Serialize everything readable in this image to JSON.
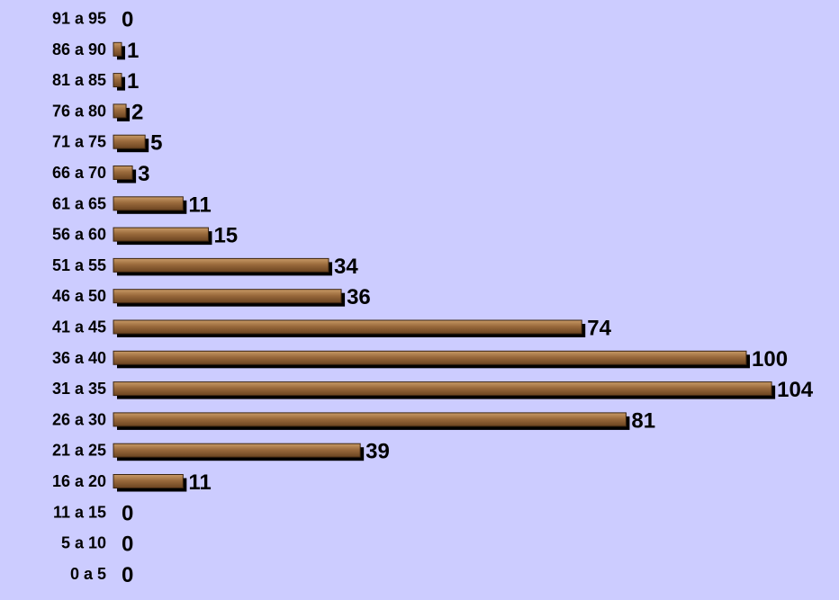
{
  "chart_data": {
    "type": "bar",
    "orientation": "horizontal",
    "categories": [
      "91 a 95",
      "86 a 90",
      "81 a 85",
      "76 a 80",
      "71 a 75",
      "66 a 70",
      "61 a  65",
      "56 a 60",
      "51 a 55",
      "46 a 50",
      "41 a 45",
      "36 a 40",
      "31 a 35",
      "26 a 30",
      "21 a 25",
      "16 a 20",
      "11 a 15",
      "5 a 10",
      "0 a 5"
    ],
    "values": [
      0,
      1,
      1,
      2,
      5,
      3,
      11,
      15,
      34,
      36,
      74,
      100,
      104,
      81,
      39,
      11,
      0,
      0,
      0
    ],
    "title": "",
    "xlabel": "",
    "ylabel": "",
    "legend": "none",
    "grid": false,
    "colors": {
      "background": "#ccccff",
      "bar_fill": "#9a6a3c",
      "bar_highlight": "#c89a66",
      "bar_dark": "#6b4420",
      "bar_shadow": "#000000"
    }
  }
}
